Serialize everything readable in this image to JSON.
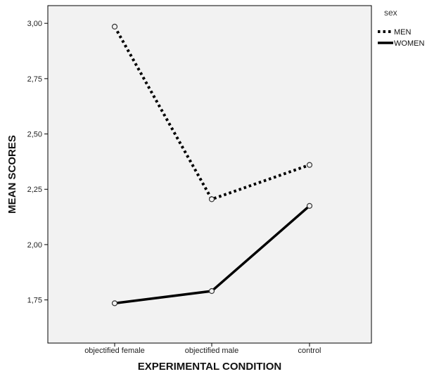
{
  "chart_data": {
    "type": "line",
    "xlabel": "EXPERIMENTAL CONDITION",
    "ylabel": "MEAN SCORES",
    "categories": [
      "objectified female",
      "objectified male",
      "control"
    ],
    "y_ticks": [
      1.75,
      2.0,
      2.25,
      2.5,
      2.75,
      3.0
    ],
    "y_tick_labels": [
      "1,75",
      "2,00",
      "2,25",
      "2,50",
      "2,75",
      "3,00"
    ],
    "ylim": [
      1.555,
      3.08
    ],
    "grid": false,
    "legend": {
      "title": "sex",
      "placement": "top-right outside plot"
    },
    "series": [
      {
        "name": "MEN",
        "values": [
          2.985,
          2.205,
          2.36
        ],
        "line_style": "dotted",
        "color": "#000000"
      },
      {
        "name": "WOMEN",
        "values": [
          1.735,
          1.79,
          2.175
        ],
        "line_style": "solid",
        "color": "#000000"
      }
    ],
    "plot_background": "#f2f2f2"
  }
}
